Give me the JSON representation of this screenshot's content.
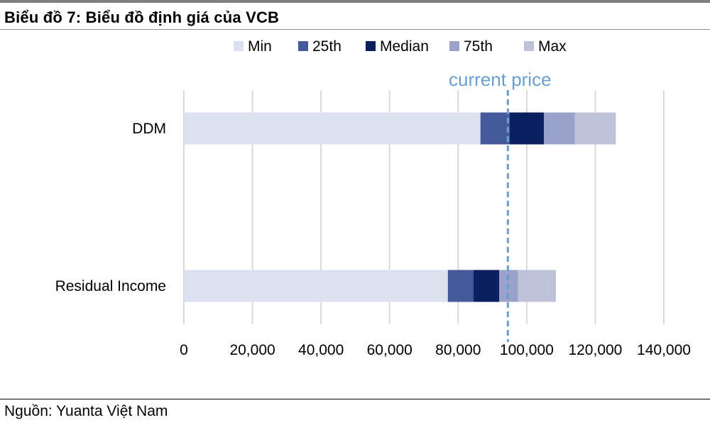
{
  "title": "Biểu đồ 7:  Biểu đồ định giá của VCB",
  "source": "Nguồn: Yuanta Việt Nam",
  "chart_data": {
    "type": "bar",
    "orientation": "horizontal",
    "stacked": true,
    "categories": [
      "DDM",
      "Residual Income"
    ],
    "series": [
      {
        "name": "Min",
        "color": "#dce1ef",
        "values": [
          86500,
          77000
        ]
      },
      {
        "name": "25th",
        "color": "#45599a",
        "values": [
          8500,
          7500
        ]
      },
      {
        "name": "Median",
        "color": "#0c1f5e",
        "values": [
          10000,
          7500
        ]
      },
      {
        "name": "75th",
        "color": "#9aa2c9",
        "values": [
          9000,
          5500
        ]
      },
      {
        "name": "Max",
        "color": "#bec2d9",
        "values": [
          12000,
          11000
        ]
      }
    ],
    "xlim": [
      0,
      140000
    ],
    "x_ticks": [
      "0",
      "20,000",
      "40,000",
      "60,000",
      "80,000",
      "100,000",
      "120,000",
      "140,000"
    ],
    "x_tick_values": [
      0,
      20000,
      40000,
      60000,
      80000,
      100000,
      120000,
      140000
    ],
    "grid": "vertical",
    "legend_position": "top",
    "reference_line": {
      "label": "current price",
      "value": 94500,
      "color": "#6a9fd4",
      "style": "dashed"
    }
  }
}
